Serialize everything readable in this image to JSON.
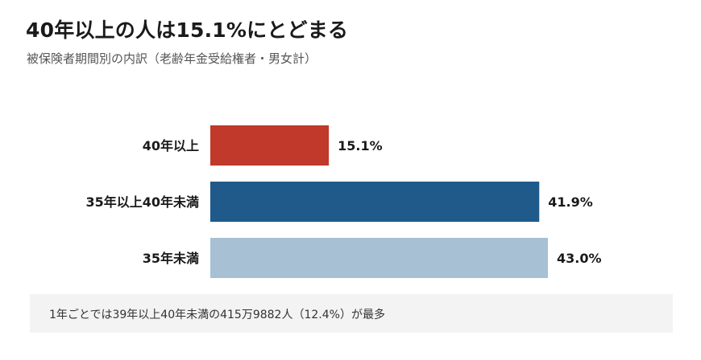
{
  "header": {
    "title": "40年以上の人は15.1%にとどまる",
    "subtitle": "被保険者期間別の内訳（老齢年金受給権者・男女計）"
  },
  "chart_data": {
    "type": "bar",
    "orientation": "horizontal",
    "title": "40年以上の人は15.1%にとどまる",
    "subtitle": "被保険者期間別の内訳（老齢年金受給権者・男女計）",
    "categories": [
      "40年以上",
      "35年以上40年未満",
      "35年未満"
    ],
    "values": [
      15.1,
      41.9,
      43.0
    ],
    "value_labels": [
      "15.1%",
      "41.9%",
      "43.0%"
    ],
    "colors": [
      "#c0392b",
      "#1f5a8a",
      "#a8c0d4"
    ],
    "xlim": [
      0,
      43.0
    ],
    "grid": false,
    "legend": "none"
  },
  "note": {
    "text": "1年ごとでは39年以上40年未満の415万9882人（12.4%）が最多"
  }
}
